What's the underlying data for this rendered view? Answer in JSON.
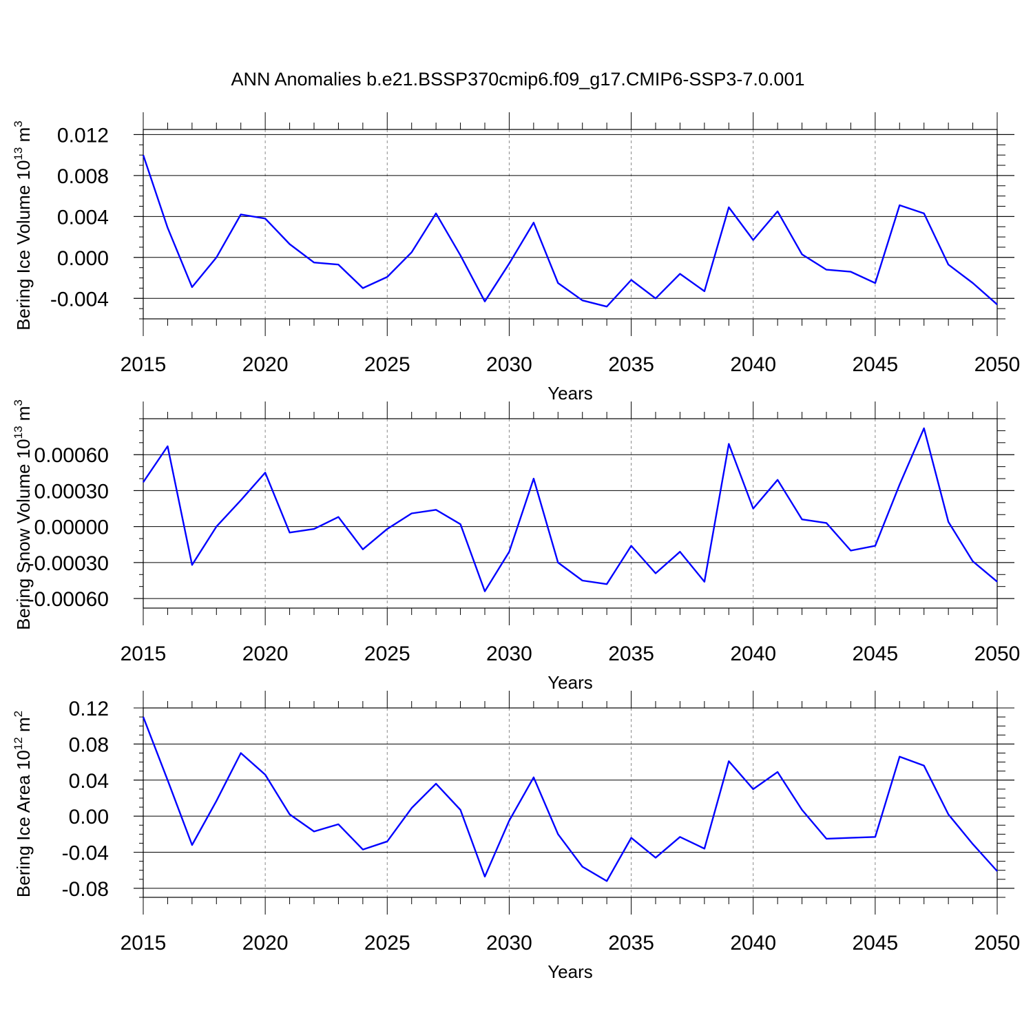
{
  "title": "ANN Anomalies b.e21.BSSP370cmip6.f09_g17.CMIP6-SSP3-7.0.001",
  "colors": {
    "line": "#0000ff",
    "axis": "#000000",
    "grid": "#888888"
  },
  "chart_data": [
    {
      "type": "line",
      "ylabel": "Bering Ice Volume 10",
      "ylabel_exp": "13",
      "ylabel_unit": " m",
      "ylabel_unit_exp": "3",
      "xlabel": "Years",
      "xlim": [
        2015,
        2050
      ],
      "ylim": [
        -0.006,
        0.0125
      ],
      "grid": "vertical dashed at major x ticks",
      "xticks": [
        "2015",
        "2020",
        "2025",
        "2030",
        "2035",
        "2040",
        "2045",
        "2050"
      ],
      "yticks": [
        "0.012",
        "0.008",
        "0.004",
        "0.000",
        "-0.004"
      ],
      "x": [
        2015,
        2016,
        2017,
        2018,
        2019,
        2020,
        2021,
        2022,
        2023,
        2024,
        2025,
        2026,
        2027,
        2028,
        2029,
        2030,
        2031,
        2032,
        2033,
        2034,
        2035,
        2036,
        2037,
        2038,
        2039,
        2040,
        2041,
        2042,
        2043,
        2044,
        2045,
        2046,
        2047,
        2048,
        2049,
        2050
      ],
      "series": [
        {
          "values": [
            0.01,
            0.0029,
            -0.0029,
            0.0,
            0.0042,
            0.0038,
            0.0013,
            -0.0005,
            -0.0007,
            -0.003,
            -0.0019,
            0.0005,
            0.0043,
            0.0002,
            -0.0043,
            -0.0006,
            0.0034,
            -0.0025,
            -0.0042,
            -0.0048,
            -0.0022,
            -0.004,
            -0.0016,
            -0.0033,
            0.0049,
            0.0017,
            0.0045,
            0.0003,
            -0.0012,
            -0.0014,
            -0.0025,
            0.0051,
            0.0043,
            -0.0007,
            -0.0025,
            -0.0046
          ]
        }
      ]
    },
    {
      "type": "line",
      "ylabel": "Bering Snow Volume 10",
      "ylabel_exp": "13",
      "ylabel_unit": " m",
      "ylabel_unit_exp": "3",
      "xlabel": "Years",
      "xlim": [
        2015,
        2050
      ],
      "ylim": [
        -0.00068,
        0.0009
      ],
      "grid": "vertical dashed at major x ticks",
      "xticks": [
        "2015",
        "2020",
        "2025",
        "2030",
        "2035",
        "2040",
        "2045",
        "2050"
      ],
      "yticks": [
        "0.00060",
        "0.00030",
        "0.00000",
        "-0.00030",
        "-0.00060"
      ],
      "x": [
        2015,
        2016,
        2017,
        2018,
        2019,
        2020,
        2021,
        2022,
        2023,
        2024,
        2025,
        2026,
        2027,
        2028,
        2029,
        2030,
        2031,
        2032,
        2033,
        2034,
        2035,
        2036,
        2037,
        2038,
        2039,
        2040,
        2041,
        2042,
        2043,
        2044,
        2045,
        2046,
        2047,
        2048,
        2049,
        2050
      ],
      "series": [
        {
          "values": [
            0.00037,
            0.00067,
            -0.00032,
            0.0,
            0.00022,
            0.00045,
            -5e-05,
            -2e-05,
            8e-05,
            -0.00019,
            -2e-05,
            0.00011,
            0.00014,
            2e-05,
            -0.00054,
            -0.00021,
            0.0004,
            -0.0003,
            -0.00045,
            -0.00048,
            -0.00016,
            -0.00039,
            -0.00021,
            -0.00046,
            0.00069,
            0.00015,
            0.00039,
            6e-05,
            3e-05,
            -0.0002,
            -0.00016,
            0.00035,
            0.00082,
            4e-05,
            -0.00029,
            -0.00046
          ]
        }
      ]
    },
    {
      "type": "line",
      "ylabel": "Bering Ice Area 10",
      "ylabel_exp": "12",
      "ylabel_unit": " m",
      "ylabel_unit_exp": "2",
      "xlabel": "Years",
      "xlim": [
        2015,
        2050
      ],
      "ylim": [
        -0.09,
        0.12
      ],
      "grid": "vertical dashed at major x ticks",
      "xticks": [
        "2015",
        "2020",
        "2025",
        "2030",
        "2035",
        "2040",
        "2045",
        "2050"
      ],
      "yticks": [
        "0.12",
        "0.08",
        "0.04",
        "0.00",
        "-0.04",
        "-0.08"
      ],
      "x": [
        2015,
        2016,
        2017,
        2018,
        2019,
        2020,
        2021,
        2022,
        2023,
        2024,
        2025,
        2026,
        2027,
        2028,
        2029,
        2030,
        2031,
        2032,
        2033,
        2034,
        2035,
        2036,
        2037,
        2038,
        2039,
        2040,
        2041,
        2042,
        2043,
        2044,
        2045,
        2046,
        2047,
        2048,
        2049,
        2050
      ],
      "series": [
        {
          "values": [
            0.11,
            0.04,
            -0.032,
            0.017,
            0.07,
            0.046,
            0.002,
            -0.017,
            -0.009,
            -0.037,
            -0.028,
            0.009,
            0.036,
            0.007,
            -0.067,
            -0.005,
            0.043,
            -0.02,
            -0.056,
            -0.072,
            -0.024,
            -0.046,
            -0.023,
            -0.036,
            0.061,
            0.03,
            0.049,
            0.007,
            -0.025,
            -0.024,
            -0.023,
            0.066,
            0.056,
            0.002,
            -0.031,
            -0.061
          ]
        }
      ]
    }
  ]
}
